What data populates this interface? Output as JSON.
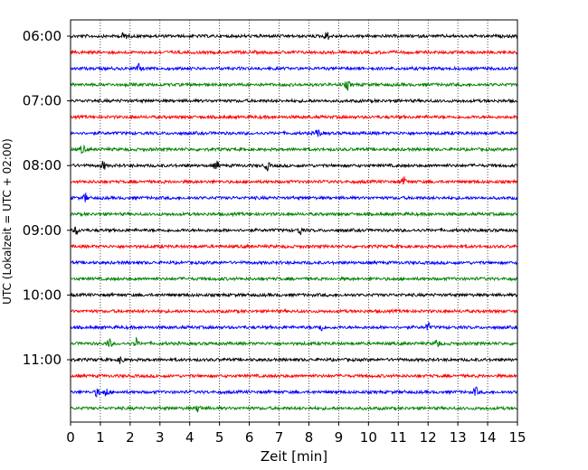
{
  "chart_data": {
    "type": "line",
    "chart_kind": "helicorder (seismogram drum plot)",
    "xlabel": "Zeit  [min]",
    "ylabel": "UTC (Lokalzeit = UTC + 02:00)",
    "xlim": [
      0,
      15
    ],
    "x_ticks": [
      "0",
      "1",
      "2",
      "3",
      "4",
      "5",
      "6",
      "7",
      "8",
      "9",
      "10",
      "11",
      "12",
      "13",
      "14",
      "15"
    ],
    "vertical_grid": "dotted at every minute",
    "line_interval_minutes": 15,
    "row_start_times": [
      "06:00",
      "06:15",
      "06:30",
      "06:45",
      "07:00",
      "07:15",
      "07:30",
      "07:45",
      "08:00",
      "08:15",
      "08:30",
      "08:45",
      "09:00",
      "09:15",
      "09:30",
      "09:45",
      "10:00",
      "10:15",
      "10:30",
      "10:45",
      "11:00",
      "11:15",
      "11:30",
      "11:45"
    ],
    "y_tick_labels": [
      "06:00",
      "07:00",
      "08:00",
      "09:00",
      "10:00",
      "11:00"
    ],
    "color_cycle": [
      "#000000",
      "#ff0000",
      "#0000ff",
      "#008000"
    ],
    "notable_events": [
      {
        "row": "06:00",
        "minute": 1.8
      },
      {
        "row": "06:00",
        "minute": 8.6
      },
      {
        "row": "06:30",
        "minute": 2.3
      },
      {
        "row": "06:45",
        "minute": 9.3
      },
      {
        "row": "07:30",
        "minute": 8.3
      },
      {
        "row": "07:45",
        "minute": 0.4
      },
      {
        "row": "08:00",
        "minute": 1.1
      },
      {
        "row": "08:00",
        "minute": 4.9
      },
      {
        "row": "08:00",
        "minute": 6.6
      },
      {
        "row": "08:15",
        "minute": 11.2
      },
      {
        "row": "08:30",
        "minute": 0.5
      },
      {
        "row": "09:00",
        "minute": 0.2
      },
      {
        "row": "09:00",
        "minute": 7.7
      },
      {
        "row": "10:30",
        "minute": 8.4
      },
      {
        "row": "10:30",
        "minute": 12.0
      },
      {
        "row": "10:45",
        "minute": 1.3
      },
      {
        "row": "10:45",
        "minute": 2.2
      },
      {
        "row": "10:45",
        "minute": 12.3
      },
      {
        "row": "11:00",
        "minute": 1.7
      },
      {
        "row": "11:30",
        "minute": 0.9
      },
      {
        "row": "11:30",
        "minute": 1.2
      },
      {
        "row": "11:30",
        "minute": 13.6
      },
      {
        "row": "11:45",
        "minute": 4.3
      }
    ]
  }
}
